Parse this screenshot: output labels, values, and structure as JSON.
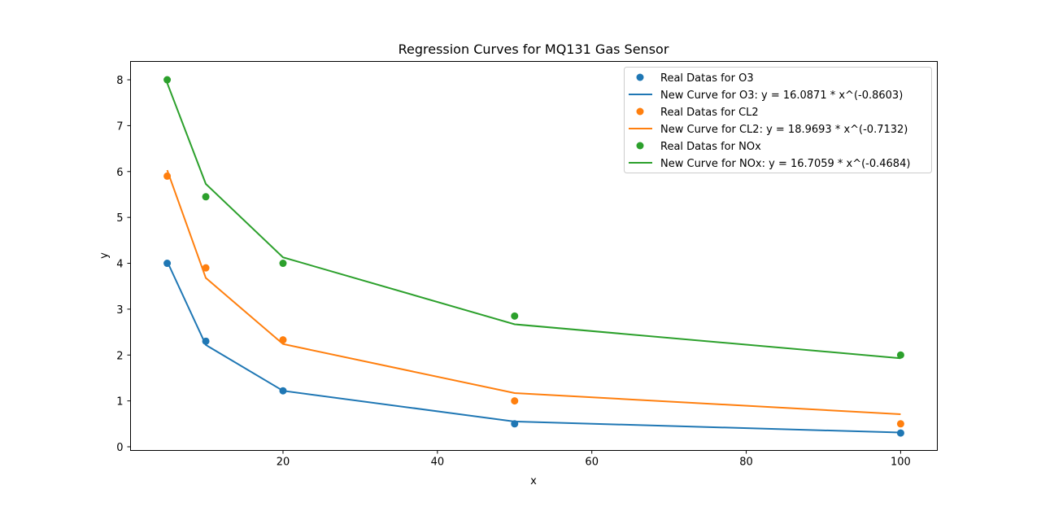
{
  "chart_data": {
    "type": "scatter",
    "title": "Regression Curves for MQ131 Gas Sensor",
    "xlabel": "x",
    "ylabel": "y",
    "xlim": [
      0.25,
      104.75
    ],
    "ylim": [
      -0.08,
      8.4
    ],
    "xticks": [
      20,
      40,
      60,
      80,
      100
    ],
    "yticks": [
      0,
      1,
      2,
      3,
      4,
      5,
      6,
      7,
      8
    ],
    "grid": false,
    "legend_position": "upper right",
    "x": [
      5,
      10,
      20,
      50,
      100
    ],
    "series": [
      {
        "name": "Real Datas for O3",
        "kind": "scatter",
        "color": "#1f77b4",
        "values": [
          4.0,
          2.3,
          1.22,
          0.5,
          0.3
        ]
      },
      {
        "name": "New Curve for O3: y = 16.0871 * x^(-0.8603)",
        "kind": "line",
        "color": "#1f77b4",
        "values": [
          4.04,
          2.22,
          1.22,
          0.55,
          0.31
        ]
      },
      {
        "name": "Real Datas for CL2",
        "kind": "scatter",
        "color": "#ff7f0e",
        "values": [
          5.9,
          3.9,
          2.33,
          1.0,
          0.5
        ]
      },
      {
        "name": "New Curve for CL2: y = 18.9693 * x^(-0.7132)",
        "kind": "line",
        "color": "#ff7f0e",
        "values": [
          6.03,
          3.68,
          2.24,
          1.17,
          0.71
        ]
      },
      {
        "name": "Real Datas for NOx",
        "kind": "scatter",
        "color": "#2ca02c",
        "values": [
          8.0,
          5.45,
          4.0,
          2.85,
          2.0
        ]
      },
      {
        "name": "New Curve for NOx: y = 16.7059 * x^(-0.4684)",
        "kind": "line",
        "color": "#2ca02c",
        "values": [
          7.93,
          5.73,
          4.13,
          2.67,
          1.93
        ]
      }
    ]
  }
}
